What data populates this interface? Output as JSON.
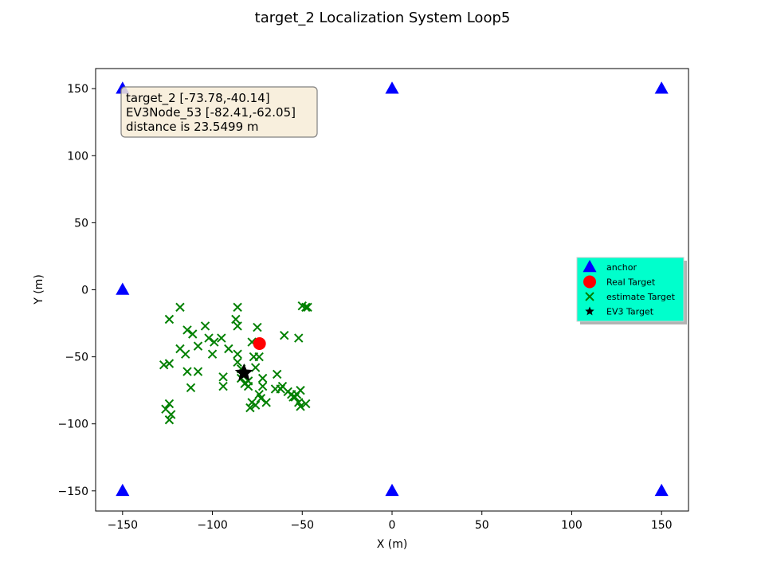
{
  "chart_data": {
    "type": "scatter",
    "title": "target_2 Localization System Loop5",
    "xlabel": "X (m)",
    "ylabel": "Y (m)",
    "xlim": [
      -165,
      165
    ],
    "ylim": [
      -165,
      165
    ],
    "xticks": [
      -150,
      -100,
      -50,
      0,
      50,
      100,
      150
    ],
    "yticks": [
      -150,
      -100,
      -50,
      0,
      50,
      100,
      150
    ],
    "xtick_labels": [
      "−150",
      "−100",
      "−50",
      "0",
      "50",
      "100",
      "150"
    ],
    "ytick_labels": [
      "−150",
      "−100",
      "−50",
      "0",
      "50",
      "100",
      "150"
    ],
    "grid": false,
    "legend_position": "right",
    "annotation": {
      "lines": [
        "target_2 [-73.78,-40.14]",
        "EV3Node_53 [-82.41,-62.05]",
        "distance is 23.5499  m"
      ],
      "position": "top-left",
      "background": "#f7ecd7",
      "border": "#808080"
    },
    "series": [
      {
        "name": "anchor",
        "marker": "triangle",
        "color": "#0000ff",
        "points": [
          [
            -150,
            150
          ],
          [
            0,
            150
          ],
          [
            150,
            150
          ],
          [
            -150,
            0
          ],
          [
            -150,
            -150
          ],
          [
            0,
            -150
          ],
          [
            150,
            -150
          ]
        ]
      },
      {
        "name": "Real Target",
        "marker": "circle",
        "color": "#ff0000",
        "points": [
          [
            -73.78,
            -40.14
          ]
        ]
      },
      {
        "name": "estimate Target",
        "marker": "x",
        "color": "#008000",
        "points": [
          [
            -118,
            -13
          ],
          [
            -86,
            -13
          ],
          [
            -124,
            -22
          ],
          [
            -87,
            -22
          ],
          [
            -86,
            -27
          ],
          [
            -104,
            -27
          ],
          [
            -75,
            -28
          ],
          [
            -114,
            -30
          ],
          [
            -111,
            -33
          ],
          [
            -102,
            -36
          ],
          [
            -95,
            -36
          ],
          [
            -99,
            -39
          ],
          [
            -78,
            -39
          ],
          [
            -60,
            -34
          ],
          [
            -52,
            -36
          ],
          [
            -50,
            -12
          ],
          [
            -48,
            -13
          ],
          [
            -47,
            -13
          ],
          [
            -108,
            -42
          ],
          [
            -118,
            -44
          ],
          [
            -91,
            -44
          ],
          [
            -115,
            -48
          ],
          [
            -100,
            -48
          ],
          [
            -86,
            -48
          ],
          [
            -86,
            -54
          ],
          [
            -127,
            -56
          ],
          [
            -124,
            -55
          ],
          [
            -108,
            -61
          ],
          [
            -114,
            -61
          ],
          [
            -84,
            -59
          ],
          [
            -76,
            -58
          ],
          [
            -74,
            -50
          ],
          [
            -77,
            -50
          ],
          [
            -72,
            -66
          ],
          [
            -64,
            -63
          ],
          [
            -94,
            -65
          ],
          [
            -94,
            -72
          ],
          [
            -112,
            -73
          ],
          [
            -82,
            -70
          ],
          [
            -80,
            -72
          ],
          [
            -72,
            -72
          ],
          [
            -65,
            -74
          ],
          [
            -62,
            -74
          ],
          [
            -61,
            -72
          ],
          [
            -58,
            -76
          ],
          [
            -56,
            -78
          ],
          [
            -55,
            -80
          ],
          [
            -53,
            -78
          ],
          [
            -51,
            -75
          ],
          [
            -74,
            -78
          ],
          [
            -73,
            -81
          ],
          [
            -78,
            -84
          ],
          [
            -76,
            -86
          ],
          [
            -70,
            -84
          ],
          [
            -79,
            -88
          ],
          [
            -54,
            -80
          ],
          [
            -52,
            -84
          ],
          [
            -51,
            -87
          ],
          [
            -48,
            -85
          ],
          [
            -124,
            -85
          ],
          [
            -126,
            -89
          ],
          [
            -123,
            -93
          ],
          [
            -124,
            -97
          ],
          [
            -84,
            -66
          ],
          [
            -80,
            -68
          ]
        ]
      },
      {
        "name": "EV3 Target",
        "marker": "star",
        "color": "#000000",
        "points": [
          [
            -82.41,
            -62.05
          ]
        ]
      }
    ]
  },
  "legend": {
    "background": "#00ffcc",
    "entries": [
      "anchor",
      "Real Target",
      "estimate Target",
      "EV3 Target"
    ]
  }
}
